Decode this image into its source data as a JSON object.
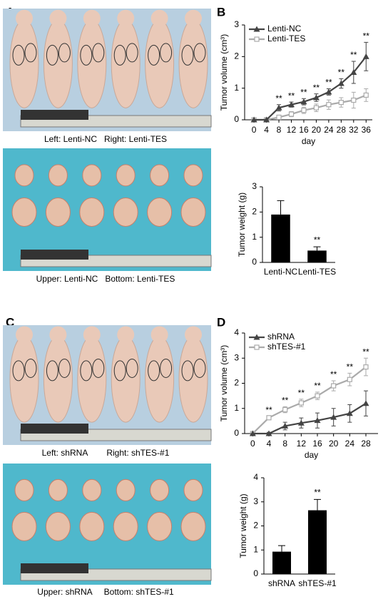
{
  "panel_labels": [
    "A",
    "B",
    "C",
    "D"
  ],
  "photo_captions": [
    "Left: Lenti-NC   Right: Lenti-TES",
    "Upper: Lenti-NC   Bottom: Lenti-TES",
    "Left: shRNA        Right: shTES-#1",
    "Upper: shRNA     Bottom: shTES-#1"
  ],
  "chart_data": [
    {
      "type": "line",
      "x_label": "day",
      "y_label": "Tumor volume (cm³)",
      "x": [
        0,
        4,
        8,
        12,
        16,
        20,
        24,
        28,
        32,
        36
      ],
      "xlim": [
        -3,
        38
      ],
      "xticks": [
        0,
        4,
        8,
        12,
        16,
        20,
        24,
        28,
        32,
        36
      ],
      "ylim": [
        0,
        3
      ],
      "yticks": [
        0,
        1,
        2,
        3
      ],
      "grid": false,
      "legend": "top-left",
      "series": [
        {
          "name": "Lenti-NC",
          "color": "#444444",
          "marker": "triangle",
          "values": [
            0,
            0,
            0.38,
            0.48,
            0.57,
            0.7,
            0.88,
            1.15,
            1.5,
            2.0
          ],
          "errors": [
            0,
            0,
            0.1,
            0.08,
            0.1,
            0.12,
            0.1,
            0.15,
            0.35,
            0.45
          ]
        },
        {
          "name": "Lenti-TES",
          "color": "#aaaaaa",
          "marker": "square",
          "values": [
            0,
            0,
            0.08,
            0.18,
            0.3,
            0.38,
            0.48,
            0.55,
            0.62,
            0.78
          ],
          "errors": [
            0,
            0,
            0.05,
            0.08,
            0.1,
            0.12,
            0.15,
            0.15,
            0.25,
            0.2
          ]
        }
      ],
      "annotations": [
        {
          "x": 8,
          "text": "**"
        },
        {
          "x": 12,
          "text": "**"
        },
        {
          "x": 16,
          "text": "**"
        },
        {
          "x": 20,
          "text": "**"
        },
        {
          "x": 24,
          "text": "**"
        },
        {
          "x": 28,
          "text": "**"
        },
        {
          "x": 32,
          "text": "**"
        },
        {
          "x": 36,
          "text": "**"
        }
      ]
    },
    {
      "type": "bar",
      "y_label": "Tumor weight (g)",
      "categories": [
        "Lenti-NC",
        "Lenti-TES"
      ],
      "values": [
        1.9,
        0.47
      ],
      "errors": [
        0.55,
        0.15
      ],
      "color": "#000000",
      "ylim": [
        0,
        3
      ],
      "yticks": [
        0,
        1,
        2,
        3
      ],
      "grid": false,
      "annotations": [
        {
          "category": "Lenti-TES",
          "text": "**"
        }
      ]
    },
    {
      "type": "line",
      "x_label": "day",
      "y_label": "Tumor volume (cm³)",
      "x": [
        0,
        4,
        8,
        12,
        16,
        20,
        24,
        28
      ],
      "xlim": [
        -2,
        31
      ],
      "xticks": [
        0,
        4,
        8,
        12,
        16,
        20,
        24,
        28
      ],
      "ylim": [
        0,
        4
      ],
      "yticks": [
        0,
        1,
        2,
        3,
        4
      ],
      "grid": false,
      "legend": "top-left",
      "series": [
        {
          "name": "shRNA",
          "color": "#444444",
          "marker": "triangle",
          "values": [
            0,
            0,
            0.3,
            0.42,
            0.52,
            0.65,
            0.8,
            1.2
          ],
          "errors": [
            0,
            0.05,
            0.15,
            0.2,
            0.3,
            0.35,
            0.35,
            0.5
          ]
        },
        {
          "name": "shTES-#1",
          "color": "#aaaaaa",
          "marker": "square",
          "values": [
            0,
            0.63,
            0.95,
            1.22,
            1.5,
            1.9,
            2.15,
            2.65
          ],
          "errors": [
            0,
            0.05,
            0.12,
            0.15,
            0.15,
            0.2,
            0.25,
            0.35
          ]
        }
      ],
      "annotations": [
        {
          "x": 4,
          "text": "**"
        },
        {
          "x": 8,
          "text": "**"
        },
        {
          "x": 12,
          "text": "**"
        },
        {
          "x": 16,
          "text": "**"
        },
        {
          "x": 20,
          "text": "**"
        },
        {
          "x": 24,
          "text": "**"
        },
        {
          "x": 28,
          "text": "**"
        }
      ]
    },
    {
      "type": "bar",
      "y_label": "Tumor weight (g)",
      "categories": [
        "shRNA",
        "shTES-#1"
      ],
      "values": [
        0.93,
        2.65
      ],
      "errors": [
        0.25,
        0.45
      ],
      "color": "#000000",
      "ylim": [
        0,
        4
      ],
      "yticks": [
        0,
        1,
        2,
        3,
        4
      ],
      "grid": false,
      "annotations": [
        {
          "category": "shTES-#1",
          "text": "**"
        }
      ]
    }
  ]
}
